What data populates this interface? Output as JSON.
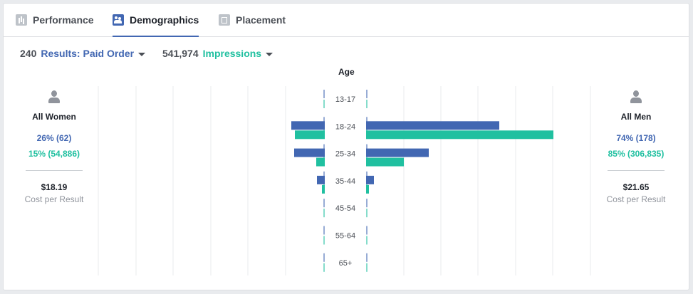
{
  "tabs": [
    {
      "label": "Performance",
      "icon": "bar-chart-icon",
      "active": false
    },
    {
      "label": "Demographics",
      "icon": "people-icon",
      "active": true
    },
    {
      "label": "Placement",
      "icon": "placement-icon",
      "active": false
    }
  ],
  "metrics": {
    "results_count": "240",
    "results_label": "Results: Paid Order",
    "impressions_count": "541,974",
    "impressions_label": "Impressions"
  },
  "colors": {
    "results": "#4267b2",
    "impressions": "#20c0a0",
    "grid": "#e9ebee"
  },
  "women": {
    "title": "All Women",
    "results_pct": "26% (62)",
    "impressions_pct": "15% (54,886)",
    "cost": "$18.19",
    "cost_label": "Cost per Result"
  },
  "men": {
    "title": "All Men",
    "results_pct": "74% (178)",
    "impressions_pct": "85% (306,835)",
    "cost": "$21.65",
    "cost_label": "Cost per Result"
  },
  "chart_data": {
    "type": "bar",
    "title": "Age",
    "categories": [
      "13-17",
      "18-24",
      "25-34",
      "35-44",
      "45-54",
      "55-64",
      "65+"
    ],
    "series": [
      {
        "name": "Women Results",
        "values": [
          0,
          47,
          43,
          11,
          0,
          0,
          0
        ]
      },
      {
        "name": "Women Impressions",
        "values": [
          0,
          42,
          12,
          4,
          0,
          0,
          0
        ]
      },
      {
        "name": "Men Results",
        "values": [
          0,
          187,
          88,
          11,
          0,
          0,
          0
        ]
      },
      {
        "name": "Men Impressions",
        "values": [
          0,
          263,
          53,
          4,
          0,
          0,
          0
        ]
      }
    ],
    "grid": true
  }
}
